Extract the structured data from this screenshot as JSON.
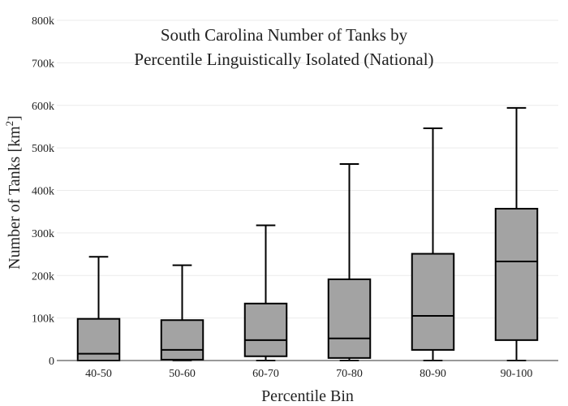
{
  "chart_data": {
    "type": "box",
    "title_lines": [
      "South Carolina Number of Tanks by",
      "Percentile Linguistically Isolated (National)"
    ],
    "xlabel": "Percentile Bin",
    "ylabel_main": "Number of Tanks  [km",
    "ylabel_sup": "2",
    "ylabel_close": "]",
    "ylim": [
      0,
      800000
    ],
    "y_ticks": [
      {
        "value": 0,
        "label": "0"
      },
      {
        "value": 100000,
        "label": "100k"
      },
      {
        "value": 200000,
        "label": "200k"
      },
      {
        "value": 300000,
        "label": "300k"
      },
      {
        "value": 400000,
        "label": "400k"
      },
      {
        "value": 500000,
        "label": "500k"
      },
      {
        "value": 600000,
        "label": "600k"
      },
      {
        "value": 700000,
        "label": "700k"
      },
      {
        "value": 800000,
        "label": "800k"
      }
    ],
    "categories": [
      "40-50",
      "50-60",
      "60-70",
      "70-80",
      "80-90",
      "90-100"
    ],
    "boxes": [
      {
        "category": "40-50",
        "min": 0,
        "q1": 0,
        "median": 16000,
        "q3": 98000,
        "max": 244000
      },
      {
        "category": "50-60",
        "min": 0,
        "q1": 2000,
        "median": 25000,
        "q3": 95000,
        "max": 224000
      },
      {
        "category": "60-70",
        "min": 0,
        "q1": 10000,
        "median": 48000,
        "q3": 134000,
        "max": 318000
      },
      {
        "category": "70-80",
        "min": 0,
        "q1": 6000,
        "median": 52000,
        "q3": 191000,
        "max": 462000
      },
      {
        "category": "80-90",
        "min": 0,
        "q1": 25000,
        "median": 105000,
        "q3": 251000,
        "max": 546000
      },
      {
        "category": "90-100",
        "min": 0,
        "q1": 48000,
        "median": 233000,
        "q3": 357000,
        "max": 594000
      }
    ],
    "box_color": "#a3a3a3",
    "line_color": "#000000"
  }
}
